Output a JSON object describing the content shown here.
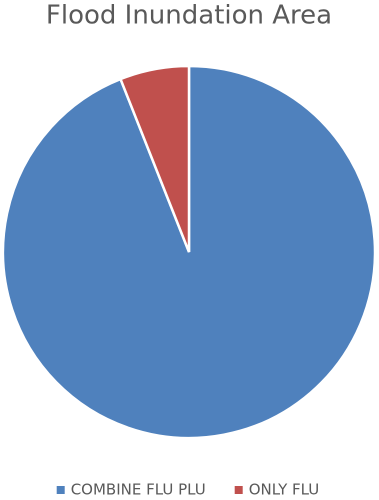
{
  "chart_data": {
    "type": "pie",
    "title": "Flood Inundation Area",
    "categories": [
      "COMBINE FLU PLU",
      "ONLY FLU"
    ],
    "values": [
      94,
      6
    ],
    "colors": [
      "#4f81bd",
      "#c0504d"
    ],
    "legend": "bottom"
  }
}
